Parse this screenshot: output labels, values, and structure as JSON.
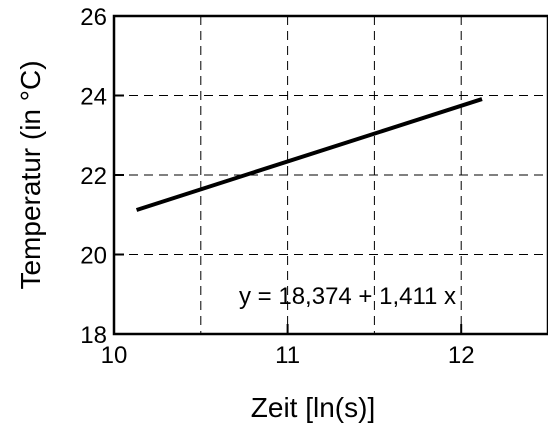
{
  "chart_data": {
    "type": "line",
    "xlabel": "Zeit [ln(s)]",
    "ylabel": "Temperatur (in °C)",
    "xlim": [
      10,
      12.5
    ],
    "ylim": [
      18,
      26
    ],
    "x_ticks": [
      "10",
      "11",
      "12"
    ],
    "y_ticks": [
      "18",
      "20",
      "22",
      "24",
      "26"
    ],
    "x_grid": [
      10.5,
      11,
      11.5,
      12
    ],
    "y_grid": [
      20,
      22,
      24
    ],
    "grid": true,
    "grid_style": "dashed",
    "series": [
      {
        "x": [
          10.13,
          12.12
        ],
        "y": [
          21.12,
          23.91
        ],
        "color": "#000000"
      }
    ],
    "annotation": "y = 18,374 + 1,411 x"
  }
}
